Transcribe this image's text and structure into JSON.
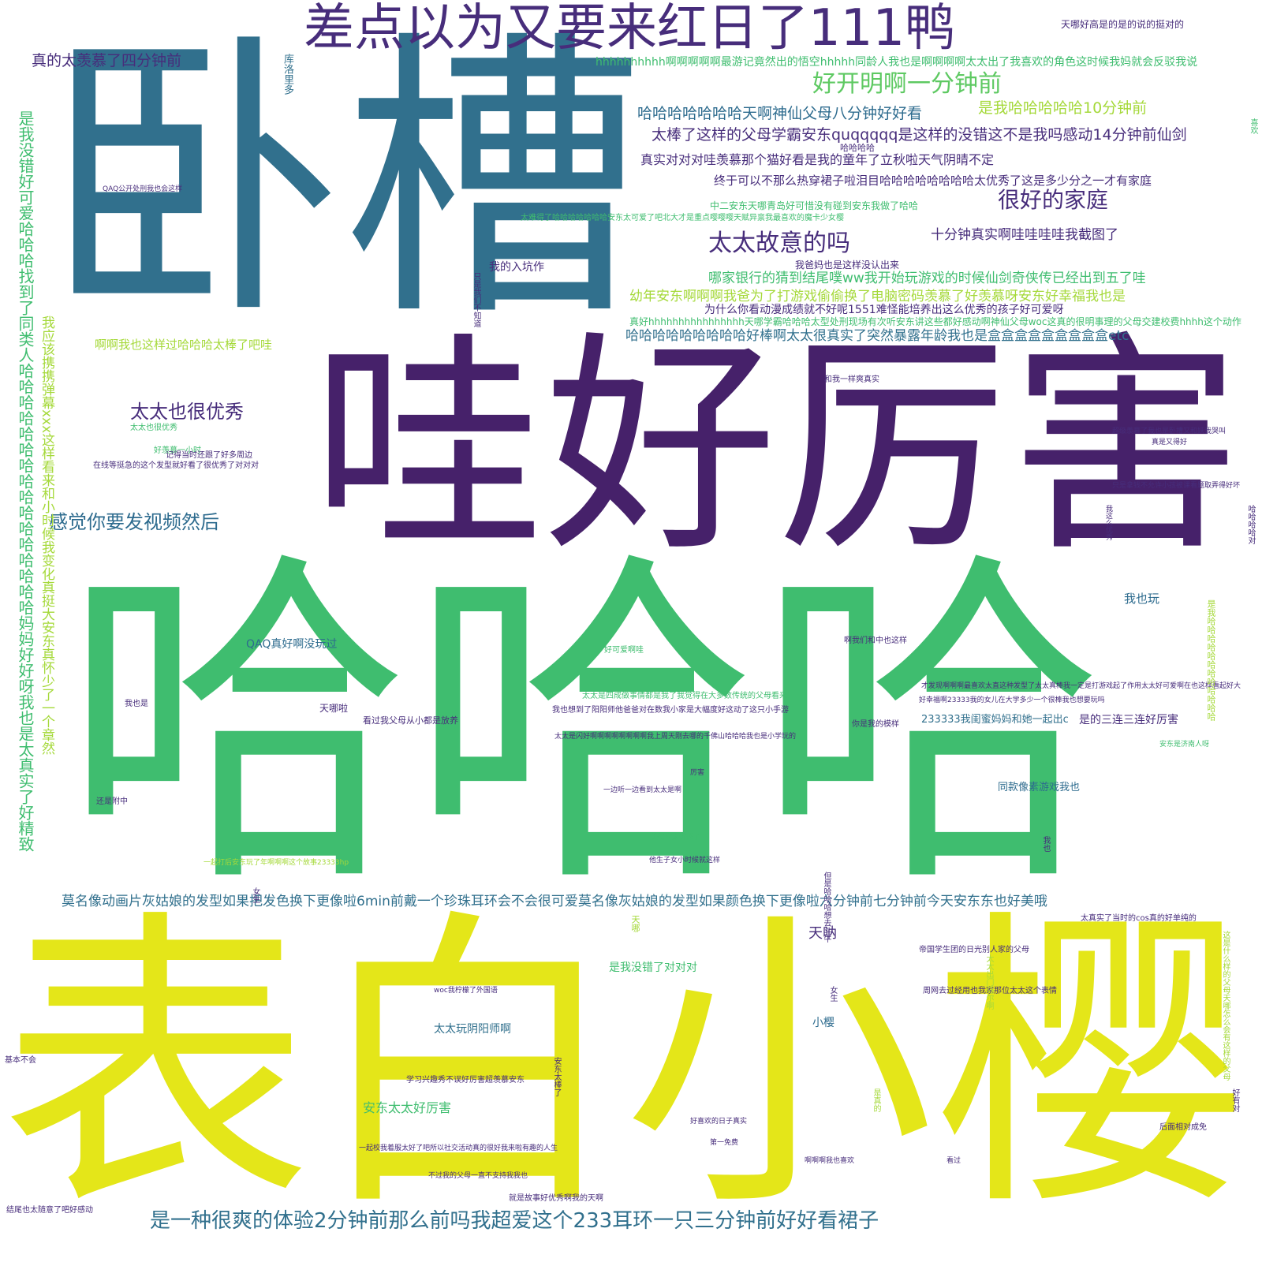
{
  "palette": {
    "dark_purple": "#46216a",
    "slate_blue": "#2d6b8e",
    "teal_blue": "#31708d",
    "green": "#3fbd6f",
    "light_green": "#5ec962",
    "yellow_green": "#a5d93a",
    "yellow": "#e4e619",
    "purple": "#472d7b"
  },
  "words": [
    {
      "text": "卧槽"
    },
    {
      "text": "哇好厉害"
    },
    {
      "text": "哈哈哈"
    },
    {
      "text": "表白小樱"
    },
    {
      "text": "差点以为又要来红日了111鸭"
    },
    {
      "text": "好开明啊一分钟前"
    },
    {
      "text": "真的太羡慕了四分钟前"
    },
    {
      "text": "hhhhhhhhhh啊啊啊啊啊最游记竟然出的悟空hhhhh同龄人我也是啊啊啊啊太太出了我喜欢的角色这时候我妈就会反驳我说"
    },
    {
      "text": "是我哈哈哈哈哈10分钟前"
    },
    {
      "text": "哈哈哈哈哈哈哈天啊神仙父母八分钟好好看"
    },
    {
      "text": "太棒了这样的父母学霸安东quqqqqq是这样的没错这不是我吗感动14分钟前仙剑"
    },
    {
      "text": "真实对对对哇羡慕那个猫好看是我的童年了立秋啦天气阴晴不定"
    },
    {
      "text": "终于可以不那么热穿裙子啦泪目哈哈哈哈哈哈哈哈太优秀了这是多少分之一才有家庭"
    },
    {
      "text": "很好的家庭"
    },
    {
      "text": "十分钟真实啊哇哇哇哇我截图了"
    },
    {
      "text": "太太故意的吗"
    },
    {
      "text": "哪家银行的猜到结尾噗ww我开始玩游戏的时候仙剑奇侠传已经出到五了哇"
    },
    {
      "text": "幼年安东啊啊啊我爸为了打游戏偷偷换了电脑密码羡慕了好羡慕呀安东好幸福我也是"
    },
    {
      "text": "哈哈哈哈哈哈哈哈哈好棒啊太太很真实了突然暴露年龄我也是盒盒盒盒盒盒盒盒盒etc"
    },
    {
      "text": "太太也很优秀"
    },
    {
      "text": "感觉你要发视频然后"
    },
    {
      "text": "啊啊我也这样过哈哈哈太棒了吧哇"
    },
    {
      "text": "我的入坑作"
    },
    {
      "text": "QAQ真好啊没玩过"
    },
    {
      "text": "莫名像动画片灰姑娘的发型如果把发色换下更像啦6min前戴一个珍珠耳环会不会很可爱莫名像灰姑娘的发型如果颜色换下更像啦六分钟前七分钟前今天安东东也好美哦"
    },
    {
      "text": "是一种很爽的体验2分钟前那么前吗我超爱这个233耳环一只三分钟前好好看裙子"
    },
    {
      "text": "太太玩阴阳师啊"
    },
    {
      "text": "安东太太好厉害"
    },
    {
      "text": "是我没错了对对对"
    },
    {
      "text": "天呐"
    },
    {
      "text": "小樱"
    },
    {
      "text": "同款像素游戏我也"
    },
    {
      "text": "是的三连三连好厉害"
    },
    {
      "text": "我也玩"
    },
    {
      "text": "233333我闺蜜妈妈和她一起出c"
    },
    {
      "text": "天哪好高是的是的说的挺对的"
    },
    {
      "text": "为什么你看动漫成绩就不好呢1551难怪能培养出这么优秀的孩子好可爱呀"
    },
    {
      "text": "天哪"
    },
    {
      "text": "天哪啦"
    },
    {
      "text": "QAQ公开处刑我也会这样"
    },
    {
      "text": "看过我父母从小都是放养"
    },
    {
      "text": "是我没错好可爱哈哈哈找到了同类人哈哈哈哈哈哈哈哈哈哈哈哈哈哈哈哈妈妈好好呀我也是太真实了好精致"
    },
    {
      "text": "我应该携携弹幕xxx这样看来和小时候我变化真挺大安东真怀少了一个章然"
    },
    {
      "text": "太太也很优秀"
    },
    {
      "text": "好羡慕一小时"
    },
    {
      "text": "在线等挺急的这个发型就好看了很优秀了对对对"
    },
    {
      "text": "记得当时还跟了好多周边"
    },
    {
      "text": "太难得了哈哈哈哈哈哈哈安东太可爱了吧北大才是重点嘤嘤嘤天赋异禀我最喜欢的魔卡少女樱"
    },
    {
      "text": "库洛里多"
    },
    {
      "text": "是我哈哈哈哈哈哈哈哈哈哈哈哈"
    },
    {
      "text": "哈哈哈哈"
    },
    {
      "text": "这是什么样的父母天哪怎么会有这样的父母"
    },
    {
      "text": "真好hhhhhhhhhhhhhhhh天哪学霸哈哈哈太型处刑现场有次听安东讲这些都好感动啊神仙父母woc这真的很明事理的父母交建校费hhhh这个动作"
    },
    {
      "text": "我爸妈也是这样没认出来"
    },
    {
      "text": "中二安东天哪青岛好可惜没有碰到安东我做了哈哈"
    },
    {
      "text": "和我一样爽真实"
    },
    {
      "text": "好可爱啊哇"
    },
    {
      "text": "你是我的模样"
    },
    {
      "text": "啊我们和中也这样"
    },
    {
      "text": "但是哈哈哈想去斗牛"
    },
    {
      "text": "太太是四成做事情都是我了我觉得在大多数传统的父母看来"
    },
    {
      "text": "我也想到了阳阳师他爸爸对在数我小家是大幅度好这动了这只小手游"
    },
    {
      "text": "一起打后安东玩了年啊啊啊这个故事23333hp"
    },
    {
      "text": "女生"
    },
    {
      "text": "只是我们不知道"
    },
    {
      "text": "我也是"
    },
    {
      "text": "还是附中"
    },
    {
      "text": "安东太棒了"
    },
    {
      "text": "基本不会"
    },
    {
      "text": "结尾也太随意了吧好感动"
    },
    {
      "text": "后面相对成免"
    },
    {
      "text": "帝国学生团的日光别人家的父母"
    },
    {
      "text": "周网去过经用也我家那位太太这个表情"
    },
    {
      "text": "太太出门马尔啊"
    },
    {
      "text": "就是故事好优秀啊我的天啊"
    },
    {
      "text": "不过我的父母一直不支持我我也"
    },
    {
      "text": "学习兴趣秀不误好厉害超羡慕安东"
    },
    {
      "text": "一起校我着服太好了吧所以社交活动真的很好我来啦有趣的人生"
    },
    {
      "text": "woc我柠檬了外国语"
    },
    {
      "text": "第一免费"
    },
    {
      "text": "好喜欢的日子真实"
    },
    {
      "text": "啊啊啊我也喜欢"
    },
    {
      "text": "看过"
    },
    {
      "text": "美得立太优秀了"
    },
    {
      "text": "他生子女小时候就这样"
    },
    {
      "text": "厉害"
    },
    {
      "text": "太太是闪好啊啊啊啊啊啊啊啊我上周天刚去哪的千佛山哈哈哈我也是小学玩的"
    },
    {
      "text": "一边听一边看到太太是啊"
    },
    {
      "text": "才发现啊啊啊最喜欢太直这种发型了太太真棒我一定是打游戏起了作用太太好可爱啊在也这样看起好大"
    },
    {
      "text": "好幸福啊23333我的女儿在大学多少一个很棒我也想要玩吗"
    },
    {
      "text": "安东是济南人呀"
    },
    {
      "text": "我这么优秀"
    },
    {
      "text": "只是拿钱不允许小孩被课看题取弄得好坏"
    },
    {
      "text": "超级羡慕了我也是卧槽又和妖我哭叫"
    },
    {
      "text": "好有对"
    },
    {
      "text": "喜欢"
    },
    {
      "text": "太真实了当时的cos真的好单纯的"
    },
    {
      "text": "哈哈哈哈对"
    },
    {
      "text": "真是又得好"
    },
    {
      "text": "女生"
    },
    {
      "text": "是真的"
    },
    {
      "text": "我也"
    }
  ]
}
